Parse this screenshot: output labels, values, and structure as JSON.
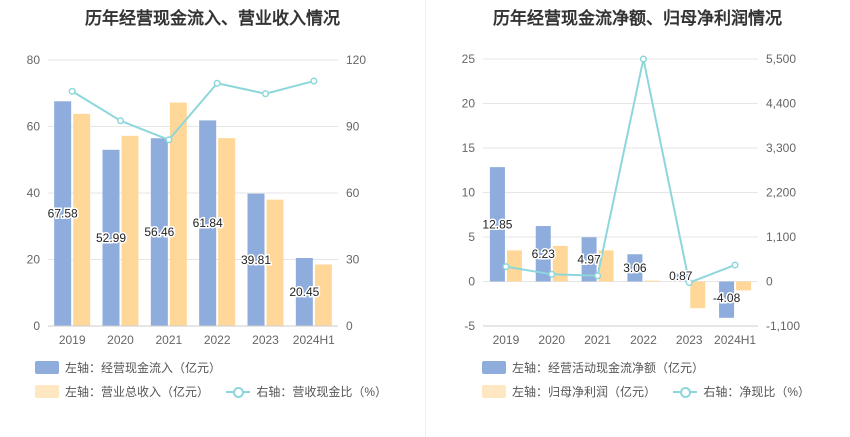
{
  "colors": {
    "blue": "#8eacdc",
    "orange": "#ffd899",
    "line": "#8dd7dc",
    "grid": "#e6e6e6",
    "axis_text": "#666666"
  },
  "chart_data": [
    {
      "type": "bar",
      "title": "历年经营现金流入、营业收入情况",
      "categories": [
        "2019",
        "2020",
        "2021",
        "2022",
        "2023",
        "2024H1"
      ],
      "series": [
        {
          "name": "左轴：经营现金流入（亿元）",
          "axis": "left",
          "kind": "bar",
          "values": [
            67.58,
            52.99,
            56.46,
            61.84,
            39.81,
            20.45
          ],
          "labels": [
            "67.58",
            "52.99",
            "56.46",
            "61.84",
            "39.81",
            "20.45"
          ]
        },
        {
          "name": "左轴：营业总收入（亿元）",
          "axis": "left",
          "kind": "bar",
          "values": [
            63.8,
            57.2,
            67.2,
            56.5,
            38.0,
            18.5
          ]
        },
        {
          "name": "右轴：营收现金比（%）",
          "axis": "right",
          "kind": "line",
          "values": [
            105.9,
            92.6,
            84.0,
            109.5,
            104.8,
            110.5
          ]
        }
      ],
      "ylim_left": [
        0,
        80
      ],
      "yticks_left": [
        "0",
        "20",
        "40",
        "60",
        "80"
      ],
      "ylim_right": [
        0,
        120
      ],
      "yticks_right": [
        "0",
        "30",
        "60",
        "90",
        "120"
      ],
      "grid": true,
      "legend_position": "bottom-left"
    },
    {
      "type": "bar",
      "title": "历年经营现金流净额、归母净利润情况",
      "categories": [
        "2019",
        "2020",
        "2021",
        "2022",
        "2023",
        "2024H1"
      ],
      "series": [
        {
          "name": "左轴：经营活动现金流净额（亿元）",
          "axis": "left",
          "kind": "bar",
          "values": [
            12.85,
            6.23,
            4.97,
            3.06,
            0.87,
            -4.08
          ],
          "labels": [
            "12.85",
            "6.23",
            "4.97",
            "3.06",
            "0.87",
            "-4.08"
          ]
        },
        {
          "name": "左轴：归母净利润（亿元）",
          "axis": "left",
          "kind": "bar",
          "values": [
            3.5,
            4.0,
            3.5,
            0.1,
            -3.0,
            -1.0
          ]
        },
        {
          "name": "右轴：净现比（%）",
          "axis": "right",
          "kind": "line",
          "values": [
            367,
            178,
            142,
            5500,
            -29,
            408
          ]
        }
      ],
      "ylim_left": [
        -5,
        25
      ],
      "yticks_left": [
        "-5",
        "0",
        "5",
        "10",
        "15",
        "20",
        "25"
      ],
      "ylim_right": [
        -1100,
        5500
      ],
      "yticks_right": [
        "-1,100",
        "0",
        "1,100",
        "2,200",
        "3,300",
        "4,400",
        "5,500"
      ],
      "grid": true,
      "legend_position": "bottom-left"
    }
  ]
}
